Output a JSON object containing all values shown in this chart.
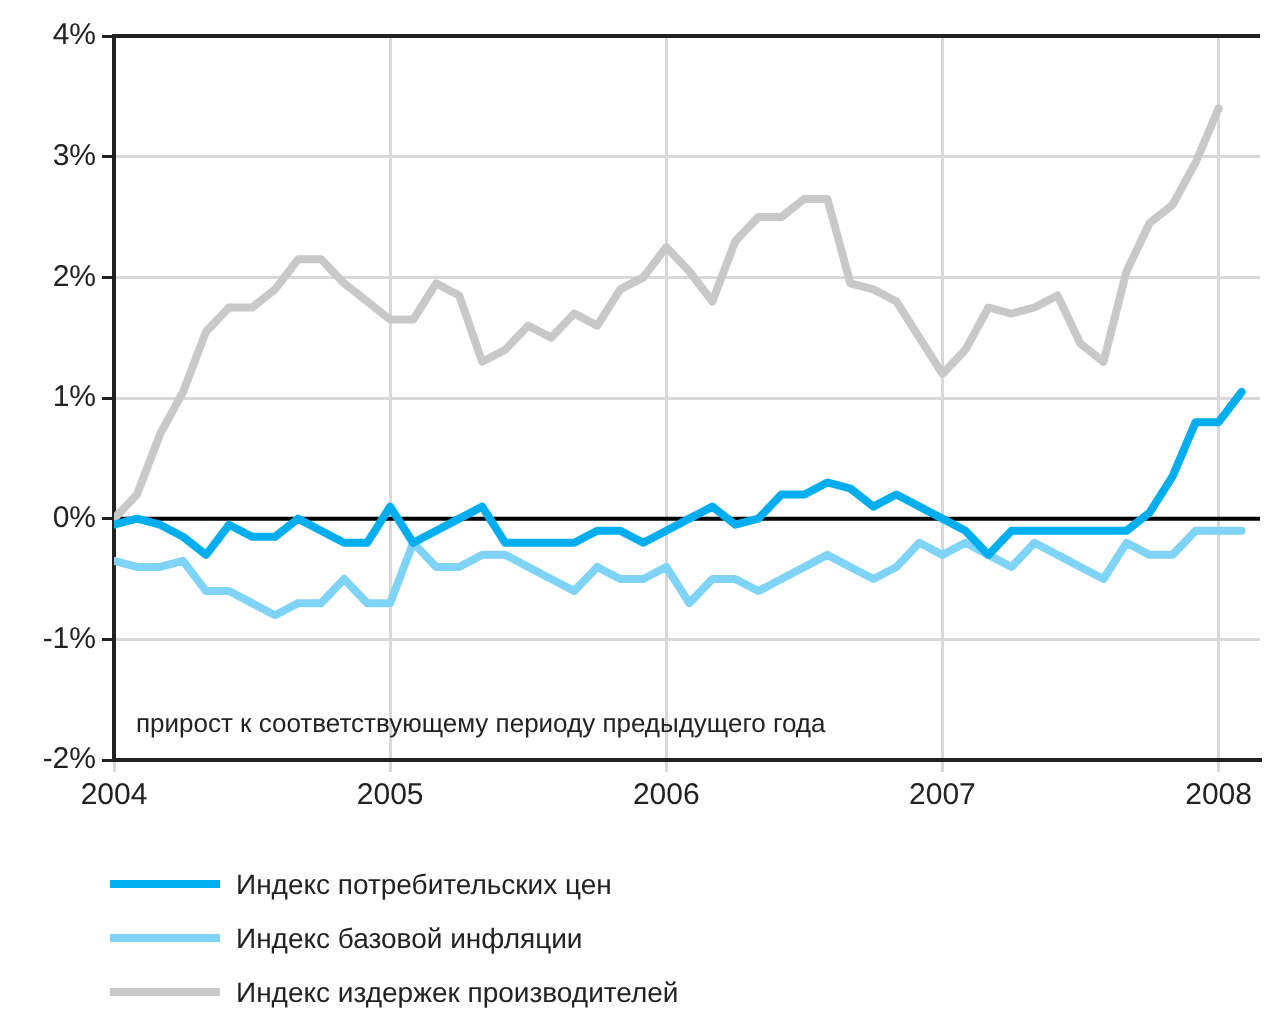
{
  "chart_data": {
    "type": "line",
    "x": [
      2004,
      2004.0833,
      2004.1667,
      2004.25,
      2004.3333,
      2004.4167,
      2004.5,
      2004.5833,
      2004.6667,
      2004.75,
      2004.8333,
      2004.9167,
      2005,
      2005.0833,
      2005.1667,
      2005.25,
      2005.3333,
      2005.4167,
      2005.5,
      2005.5833,
      2005.6667,
      2005.75,
      2005.8333,
      2005.9167,
      2006,
      2006.0833,
      2006.1667,
      2006.25,
      2006.3333,
      2006.4167,
      2006.5,
      2006.5833,
      2006.6667,
      2006.75,
      2006.8333,
      2006.9167,
      2007,
      2007.0833,
      2007.1667,
      2007.25,
      2007.3333,
      2007.4167,
      2007.5,
      2007.5833,
      2007.6667,
      2007.75,
      2007.8333,
      2007.9167,
      2008,
      2008.0833
    ],
    "series": [
      {
        "name": "Индекс потребительских цен",
        "color": "#00aeef",
        "values": [
          -0.05,
          0,
          -0.05,
          -0.15,
          -0.3,
          -0.05,
          -0.15,
          -0.15,
          0,
          -0.1,
          -0.2,
          -0.2,
          0.1,
          -0.2,
          -0.1,
          0,
          0.1,
          -0.2,
          -0.2,
          -0.2,
          -0.2,
          -0.1,
          -0.1,
          -0.2,
          -0.1,
          0,
          0.1,
          -0.05,
          0,
          0.2,
          0.2,
          0.3,
          0.25,
          0.1,
          0.2,
          0.1,
          0,
          -0.1,
          -0.3,
          -0.1,
          -0.1,
          -0.1,
          -0.1,
          -0.1,
          -0.1,
          0.05,
          0.35,
          0.8,
          0.8,
          1.05
        ]
      },
      {
        "name": "Индекс базовой инфляции",
        "color": "#7fd3f7",
        "values": [
          -0.35,
          -0.4,
          -0.4,
          -0.35,
          -0.6,
          -0.6,
          -0.7,
          -0.8,
          -0.7,
          -0.7,
          -0.5,
          -0.7,
          -0.7,
          -0.2,
          -0.4,
          -0.4,
          -0.3,
          -0.3,
          -0.4,
          -0.5,
          -0.6,
          -0.4,
          -0.5,
          -0.5,
          -0.4,
          -0.7,
          -0.5,
          -0.5,
          -0.6,
          -0.5,
          -0.4,
          -0.3,
          -0.4,
          -0.5,
          -0.4,
          -0.2,
          -0.3,
          -0.2,
          -0.3,
          -0.4,
          -0.2,
          -0.3,
          -0.4,
          -0.5,
          -0.2,
          -0.3,
          -0.3,
          -0.1,
          -0.1,
          -0.1
        ]
      },
      {
        "name": "Индекс издержек производителей",
        "color": "#c8c8c8",
        "values": [
          0,
          0.2,
          0.7,
          1.05,
          1.55,
          1.75,
          1.75,
          1.9,
          2.15,
          2.15,
          1.95,
          1.8,
          1.65,
          1.65,
          1.95,
          1.85,
          1.3,
          1.4,
          1.6,
          1.5,
          1.7,
          1.6,
          1.9,
          2.0,
          2.25,
          2.05,
          1.8,
          2.3,
          2.5,
          2.5,
          2.65,
          2.65,
          1.95,
          1.9,
          1.8,
          1.5,
          1.2,
          1.4,
          1.75,
          1.7,
          1.75,
          1.85,
          1.45,
          1.3,
          2.05,
          2.45,
          2.6,
          2.95,
          3.4,
          null
        ]
      }
    ],
    "xlim": [
      2004,
      2008.15
    ],
    "xticks": [
      2004,
      2005,
      2006,
      2007,
      2008
    ],
    "ylim": [
      -2,
      4
    ],
    "yticks": [
      {
        "value": -2,
        "label": "-2%"
      },
      {
        "value": -1,
        "label": "-1%"
      },
      {
        "value": 0,
        "label": "0%"
      },
      {
        "value": 1,
        "label": "1%"
      },
      {
        "value": 2,
        "label": "2%"
      },
      {
        "value": 3,
        "label": "3%"
      },
      {
        "value": 4,
        "label": "4%"
      }
    ],
    "ref_lines": [
      {
        "axis": "y",
        "value": 0,
        "color": "#000000"
      }
    ],
    "annotations": [
      "прирост к соответствующему периоду предыдущего года"
    ],
    "grid": true,
    "legend": "bottom",
    "marker": "none",
    "line_style": "solid"
  }
}
